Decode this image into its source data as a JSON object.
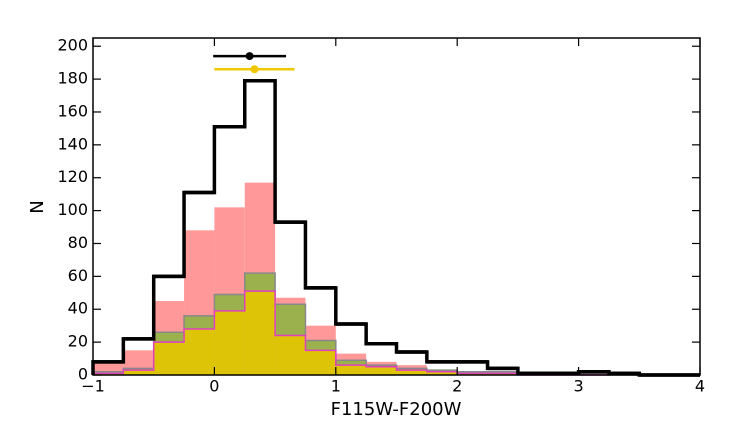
{
  "chart_data": {
    "type": "histogram",
    "xlabel": "F115W-F200W",
    "ylabel": "N",
    "bins": [
      -1,
      -0.75,
      -0.5,
      -0.25,
      0,
      0.25,
      0.5,
      0.75,
      1,
      1.25,
      1.5,
      1.75,
      2,
      2.25,
      2.5,
      2.75,
      3,
      3.25,
      3.5,
      3.75,
      4
    ],
    "series": [
      {
        "color": "#ff8080",
        "opacity": 0.8,
        "fill": true,
        "values": [
          7,
          15,
          45,
          88,
          102,
          117,
          47,
          30,
          13,
          8,
          6,
          3,
          2,
          2,
          1,
          1,
          1,
          2,
          0,
          0
        ]
      },
      {
        "color": "#8ab540",
        "opacity": 0.85,
        "fill": true,
        "edgecolor": "#888888",
        "values": [
          2,
          4,
          26,
          36,
          49,
          62,
          43,
          21,
          9,
          6,
          4,
          3,
          2,
          2,
          1,
          1,
          1,
          0,
          0,
          0
        ]
      },
      {
        "color": "#e6c700",
        "opacity": 0.9,
        "fill": true,
        "edgecolor": "#e040c0",
        "values": [
          1,
          3,
          20,
          28,
          39,
          51,
          24,
          15,
          6,
          5,
          3,
          2,
          1,
          1,
          0,
          0,
          0,
          1,
          0,
          0
        ]
      },
      {
        "color": "#000000",
        "fill": false,
        "values": [
          8,
          22,
          60,
          111,
          151,
          179,
          93,
          53,
          31,
          19,
          14,
          8,
          8,
          4,
          1,
          1,
          2,
          1,
          0,
          0
        ]
      }
    ],
    "points": [
      {
        "x": 0.29,
        "y": 194,
        "xerr": 0.3,
        "color": "#000000"
      },
      {
        "x": 0.33,
        "y": 186,
        "xerr": 0.33,
        "color": "#f0c800"
      }
    ],
    "xlim": [
      -1,
      4
    ],
    "ylim": [
      0,
      205
    ],
    "xticks": [
      {
        "value": -1,
        "label": "−1"
      },
      0,
      1,
      2,
      3,
      4
    ],
    "yticks": [
      0,
      20,
      40,
      60,
      80,
      100,
      120,
      140,
      160,
      180,
      200
    ]
  }
}
